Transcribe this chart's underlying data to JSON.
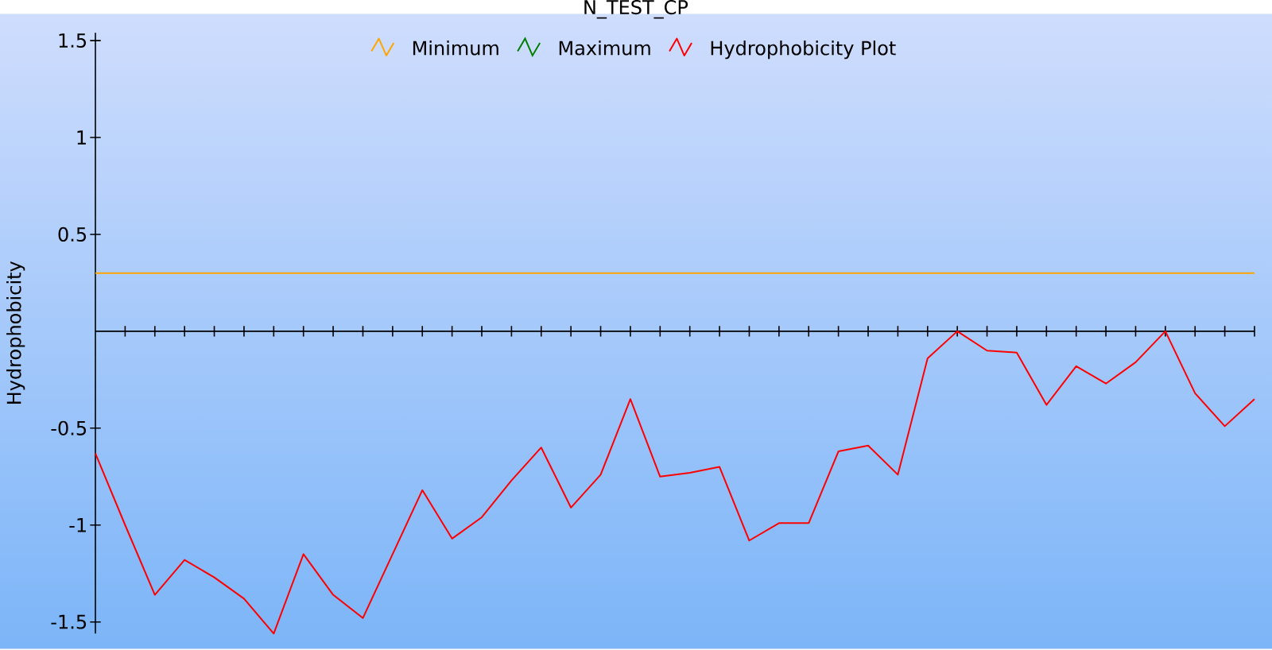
{
  "chart_data": {
    "type": "line",
    "title": "N_TEST_CP",
    "ylabel": "Hydrophobicity",
    "categories": [
      null,
      null,
      null,
      null,
      null,
      null,
      null,
      null,
      null,
      null,
      null,
      null,
      null,
      null,
      null,
      null,
      null,
      null,
      null,
      null,
      null,
      null,
      null,
      null,
      null,
      null,
      null,
      null,
      null,
      null,
      null,
      null,
      null,
      null,
      null,
      null,
      null,
      null,
      null,
      null
    ],
    "series": [
      {
        "name": "Minimum",
        "color": "#ffa500",
        "values": [
          0.3,
          0.3,
          0.3,
          0.3,
          0.3,
          0.3,
          0.3,
          0.3,
          0.3,
          0.3,
          0.3,
          0.3,
          0.3,
          0.3,
          0.3,
          0.3,
          0.3,
          0.3,
          0.3,
          0.3,
          0.3,
          0.3,
          0.3,
          0.3,
          0.3,
          0.3,
          0.3,
          0.3,
          0.3,
          0.3,
          0.3,
          0.3,
          0.3,
          0.3,
          0.3,
          0.3,
          0.3,
          0.3,
          0.3,
          0.3
        ]
      },
      {
        "name": "Maximum",
        "color": "#008000",
        "values": [
          null,
          null,
          null,
          null,
          null,
          null,
          null,
          null,
          null,
          null,
          null,
          null,
          null,
          null,
          null,
          null,
          null,
          null,
          null,
          null,
          null,
          null,
          null,
          null,
          null,
          null,
          null,
          null,
          null,
          null,
          null,
          null,
          null,
          null,
          null,
          null,
          null,
          null,
          null,
          null
        ]
      },
      {
        "name": "Hydrophobicity Plot",
        "color": "#ff0000",
        "values": [
          -0.63,
          -1.0,
          -1.36,
          -1.18,
          -1.27,
          -1.38,
          -1.56,
          -1.15,
          -1.36,
          -1.48,
          -1.15,
          -0.82,
          -1.07,
          -0.96,
          -0.77,
          -0.6,
          -0.91,
          -0.74,
          -0.35,
          -0.75,
          -0.73,
          -0.7,
          -1.08,
          -0.99,
          -0.99,
          -0.62,
          -0.59,
          -0.74,
          -0.14,
          0.0,
          -0.1,
          -0.11,
          -0.38,
          -0.18,
          -0.27,
          -0.16,
          0.0,
          -0.32,
          -0.49,
          -0.35
        ]
      }
    ],
    "ylim": [
      -1.56,
      1.54
    ],
    "yticks": [
      -1.5,
      -1,
      -0.5,
      0.5,
      1,
      1.5
    ],
    "legend": "top",
    "grid": false,
    "marker": "none"
  }
}
